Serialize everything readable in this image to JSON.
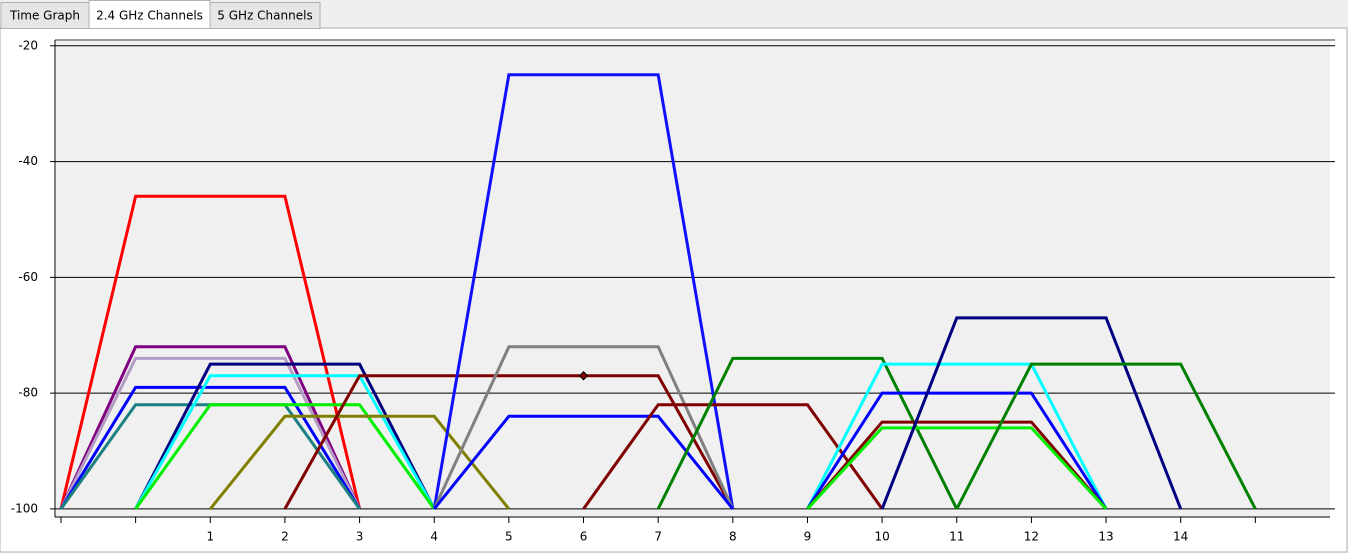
{
  "tabs": [
    "Time Graph",
    "2.4 GHz Channels",
    "5 GHz Channels"
  ],
  "active_tab": 1,
  "chart_data": {
    "type": "line",
    "xlim": [
      -1.08,
      16
    ],
    "ylim": [
      -101.4,
      -19
    ],
    "xticks": [
      1,
      2,
      3,
      4,
      5,
      6,
      7,
      8,
      9,
      10,
      11,
      12,
      13,
      14
    ],
    "xticks_unlabeled": [
      -1,
      0,
      15
    ],
    "yticks": [
      -20,
      -40,
      -60,
      -80,
      -100
    ],
    "grid": true,
    "highlight_point": {
      "x": 6,
      "y": -77,
      "color": "#800000"
    },
    "series": [
      {
        "color": "#ff0000",
        "x": [
          -1,
          0,
          2,
          3
        ],
        "values": [
          -100,
          -46,
          -46,
          -100
        ]
      },
      {
        "color": "#800080",
        "x": [
          -1,
          0,
          2,
          3
        ],
        "values": [
          -100,
          -72,
          -72,
          -100
        ]
      },
      {
        "color": "#b49cc4",
        "x": [
          -1,
          0,
          2,
          3
        ],
        "values": [
          -100,
          -74,
          -74,
          -100
        ]
      },
      {
        "color": "#0000ff",
        "x": [
          -1,
          0,
          2,
          3
        ],
        "values": [
          -100,
          -79,
          -79,
          -100
        ]
      },
      {
        "color": "#1c8080",
        "x": [
          -1,
          0,
          2,
          3
        ],
        "values": [
          -100,
          -82,
          -82,
          -100
        ]
      },
      {
        "color": "#000080",
        "x": [
          0,
          1,
          3,
          4
        ],
        "values": [
          -100,
          -75,
          -75,
          -100
        ]
      },
      {
        "color": "#00ffff",
        "x": [
          0,
          1,
          3,
          4
        ],
        "values": [
          -100,
          -77,
          -77,
          -100
        ]
      },
      {
        "color": "#00ee00",
        "x": [
          0,
          1,
          3,
          4
        ],
        "values": [
          -100,
          -82,
          -82,
          -100
        ]
      },
      {
        "color": "#808000",
        "x": [
          1,
          2,
          4,
          5
        ],
        "values": [
          -100,
          -84,
          -84,
          -100
        ]
      },
      {
        "color": "#800000",
        "x": [
          2,
          3,
          7,
          8
        ],
        "values": [
          -100,
          -77,
          -77,
          -100
        ]
      },
      {
        "color": "#1010ff",
        "x": [
          4,
          5,
          7,
          8
        ],
        "values": [
          -100,
          -25,
          -25,
          -100
        ]
      },
      {
        "color": "#808080",
        "x": [
          4,
          5,
          7,
          8
        ],
        "values": [
          -100,
          -72,
          -72,
          -100
        ]
      },
      {
        "color": "#0000ff",
        "x": [
          4,
          5,
          7,
          8
        ],
        "values": [
          -100,
          -84,
          -84,
          -100
        ]
      },
      {
        "color": "#800000",
        "x": [
          6,
          7,
          9,
          10
        ],
        "values": [
          -100,
          -82,
          -82,
          -100
        ]
      },
      {
        "color": "#008000",
        "x": [
          7,
          8,
          10,
          11
        ],
        "values": [
          -100,
          -74,
          -74,
          -100
        ]
      },
      {
        "color": "#00ffff",
        "x": [
          9,
          10,
          12,
          13
        ],
        "values": [
          -100,
          -75,
          -75,
          -100
        ]
      },
      {
        "color": "#0000ff",
        "x": [
          9,
          10,
          12,
          13
        ],
        "values": [
          -100,
          -80,
          -80,
          -100
        ]
      },
      {
        "color": "#800000",
        "x": [
          9,
          10,
          12,
          13
        ],
        "values": [
          -100,
          -85,
          -85,
          -100
        ]
      },
      {
        "color": "#00ee00",
        "x": [
          9,
          10,
          12,
          13
        ],
        "values": [
          -100,
          -86,
          -86,
          -100
        ]
      },
      {
        "color": "#000080",
        "x": [
          10,
          11,
          13,
          14
        ],
        "values": [
          -100,
          -67,
          -67,
          -100
        ]
      },
      {
        "color": "#008000",
        "x": [
          11,
          12,
          14,
          15
        ],
        "values": [
          -100,
          -75,
          -75,
          -100
        ]
      }
    ]
  }
}
